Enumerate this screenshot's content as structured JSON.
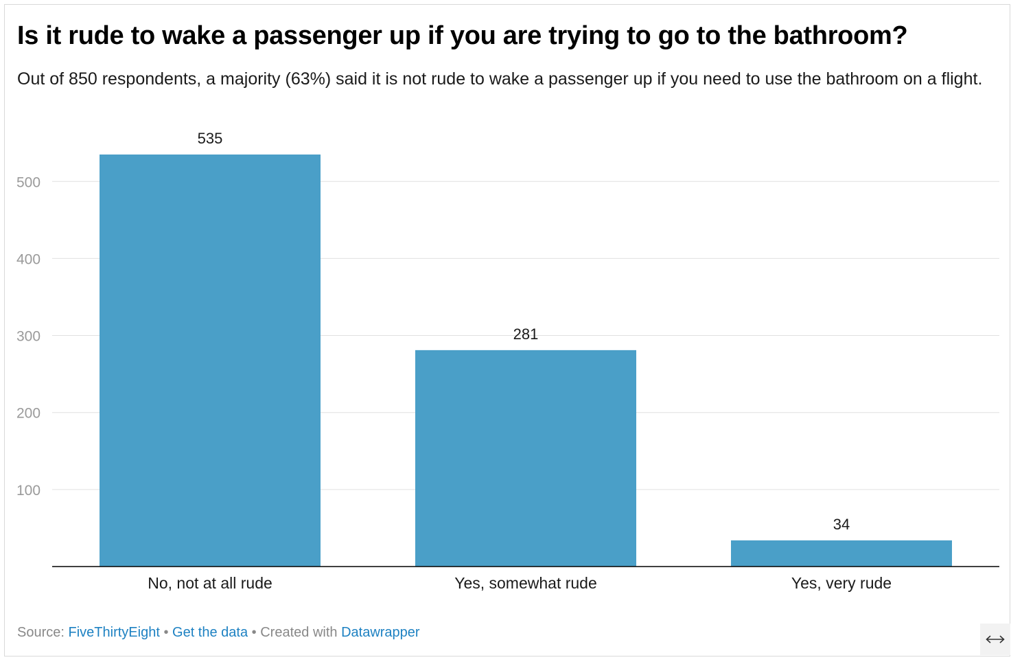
{
  "header": {
    "title": "Is it rude to wake a passenger up if you are trying to go to the bathroom?",
    "subtitle": "Out of 850 respondents, a majority (63%) said it is not rude to wake a passenger up if you need to use the bathroom on a flight."
  },
  "chart_data": {
    "type": "bar",
    "categories": [
      "No, not at all rude",
      "Yes, somewhat rude",
      "Yes, very rude"
    ],
    "values": [
      535,
      281,
      34
    ],
    "yticks": [
      100,
      200,
      300,
      400,
      500
    ],
    "ylim": [
      0,
      535
    ],
    "grid": true,
    "bar_color": "#4a9fc8"
  },
  "footer": {
    "source_prefix": "Source:",
    "source_link": "FiveThirtyEight",
    "separator_1": "•",
    "get_data_link": "Get the data",
    "separator_2": "•",
    "created_with": "Created with",
    "datawrapper_link": "Datawrapper"
  },
  "colors": {
    "link": "#1d81c2",
    "muted_text": "#888888",
    "gridline": "#e0e0e0",
    "axis_line": "#000000"
  },
  "expand_icon": "horizontal-double-arrow-icon"
}
